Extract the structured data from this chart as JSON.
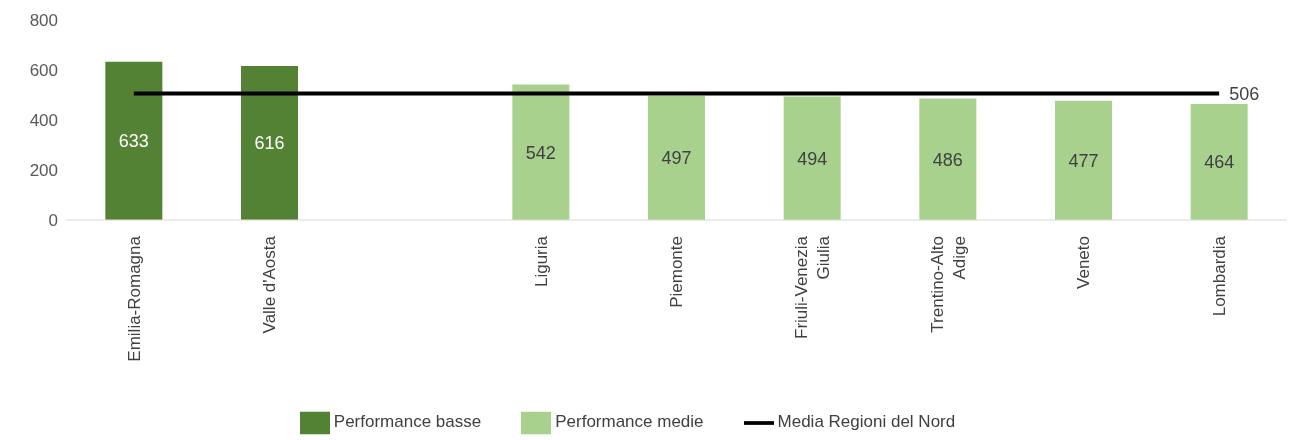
{
  "chart_data": {
    "type": "bar",
    "stacked": true,
    "data_labels": true,
    "categories": [
      "Emilia-Romagna",
      "Valle d'Aosta",
      null,
      "Liguria",
      "Piemonte",
      "Friuli-Venezia Giulia",
      "Trentino-Alto Adige",
      "Veneto",
      "Lombardia"
    ],
    "series": [
      {
        "name": "Performance basse",
        "color": "#548235",
        "values": [
          633,
          616,
          null,
          null,
          null,
          null,
          null,
          null,
          null
        ]
      },
      {
        "name": "Performance medie",
        "color": "#a9d18e",
        "values": [
          null,
          null,
          null,
          542,
          497,
          494,
          486,
          477,
          464
        ]
      },
      {
        "name": "Media Regioni del Nord",
        "type": "line",
        "color": "#000000",
        "values": [
          506,
          506,
          506,
          506,
          506,
          506,
          506,
          506,
          506
        ],
        "value_labels": [
          null,
          null,
          null,
          null,
          null,
          null,
          null,
          null,
          "506"
        ]
      }
    ],
    "ylim": [
      0,
      800
    ],
    "yticks": [
      0,
      200,
      400,
      600,
      800
    ],
    "legend": "bottom",
    "marker": "none"
  }
}
